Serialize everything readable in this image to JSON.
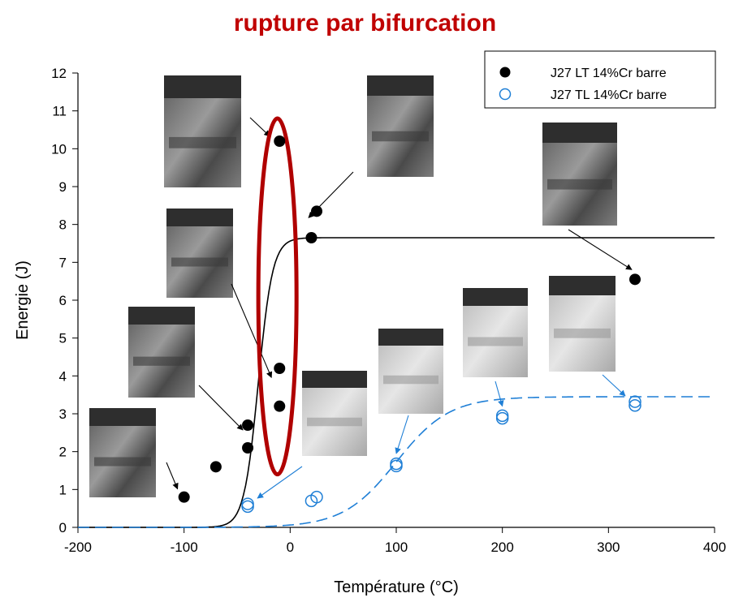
{
  "chart_data": {
    "type": "scatter",
    "title": "rupture par bifurcation",
    "xlabel": "Température (°C)",
    "ylabel": "Energie (J)",
    "xlim": [
      -200,
      400
    ],
    "ylim": [
      0,
      12
    ],
    "xticks": [
      -200,
      -100,
      0,
      100,
      200,
      300,
      400
    ],
    "yticks": [
      0,
      1,
      2,
      3,
      4,
      5,
      6,
      7,
      8,
      9,
      10,
      11,
      12
    ],
    "grid": false,
    "legend_position": "top-right",
    "series": [
      {
        "name": "J27 LT 14%Cr barre",
        "marker": "filled-circle",
        "color": "#000000",
        "x": [
          -100,
          -70,
          -40,
          -40,
          -10,
          -10,
          -10,
          20,
          25,
          325
        ],
        "y": [
          0.8,
          1.6,
          2.1,
          2.7,
          3.2,
          4.2,
          10.2,
          7.65,
          8.35,
          6.55
        ]
      },
      {
        "name": "J27 TL 14%Cr barre",
        "marker": "open-circle",
        "color": "#1f7fd6",
        "x": [
          -40,
          -40,
          20,
          25,
          100,
          100,
          200,
          200,
          325,
          325
        ],
        "y": [
          0.55,
          0.62,
          0.7,
          0.8,
          1.62,
          1.68,
          2.88,
          2.95,
          3.22,
          3.32
        ]
      }
    ],
    "fit_curves": [
      {
        "series": "J27 LT 14%Cr barre",
        "style": "solid",
        "color": "#000000",
        "lower_shelf": 0,
        "upper_shelf": 7.65,
        "midpoint": -30,
        "width": 13.5
      },
      {
        "series": "J27 TL 14%Cr barre",
        "style": "dashed",
        "color": "#1f7fd6",
        "lower_shelf": 0,
        "upper_shelf": 3.45,
        "midpoint": 100,
        "width": 50
      }
    ],
    "annotations": {
      "highlight_ellipse": {
        "center_x": -12,
        "center_y": 6.1,
        "radius_x": 18,
        "radius_y": 4.7,
        "color": "#b00000"
      },
      "fracture_images": [
        {
          "name": "fracture-image-lt-minus100",
          "target": [
            -100,
            0.8
          ],
          "tone": "dark"
        },
        {
          "name": "fracture-image-lt-minus40",
          "target": [
            -40,
            2.4
          ],
          "tone": "dark"
        },
        {
          "name": "fracture-image-lt-minus10-low",
          "target": [
            -10,
            3.7
          ],
          "tone": "dark"
        },
        {
          "name": "fracture-image-lt-minus10-high",
          "target": [
            -10,
            10.2
          ],
          "tone": "dark"
        },
        {
          "name": "fracture-image-lt-25",
          "target": [
            25,
            8.35
          ],
          "tone": "dark"
        },
        {
          "name": "fracture-image-lt-325",
          "target": [
            325,
            6.55
          ],
          "tone": "dark"
        },
        {
          "name": "fracture-image-tl-minus40",
          "target": [
            -40,
            0.6
          ],
          "tone": "light"
        },
        {
          "name": "fracture-image-tl-100",
          "target": [
            100,
            1.65
          ],
          "tone": "light"
        },
        {
          "name": "fracture-image-tl-200",
          "target": [
            200,
            2.9
          ],
          "tone": "light"
        },
        {
          "name": "fracture-image-tl-325",
          "target": [
            325,
            3.3
          ],
          "tone": "light"
        }
      ]
    }
  }
}
